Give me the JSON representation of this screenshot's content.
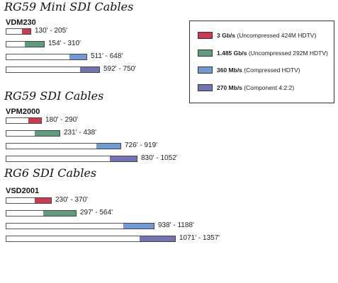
{
  "chart_data": {
    "type": "bar",
    "colors": {
      "3gbs": "#cd3a4f",
      "1485gbs": "#5f9c7f",
      "360mbs": "#6f9ad6",
      "270mbs": "#7474b4"
    },
    "legend": {
      "placement": "top-right",
      "entries": [
        {
          "key": "3gbs",
          "rate": "3 Gb/s",
          "desc": "(Uncompressed 424M HDTV)"
        },
        {
          "key": "1485gbs",
          "rate": "1.485 Gb/s",
          "desc": "(Uncompressed 292M HDTV)"
        },
        {
          "key": "360mbs",
          "rate": "360 Mb/s",
          "desc": "(Compressed HDTV)"
        },
        {
          "key": "270mbs",
          "rate": "270 Mb/s",
          "desc": "(Component 4:2:2)"
        }
      ]
    },
    "scale_max_ft": 1357,
    "sections": [
      {
        "title": "RG59 Mini SDI Cables",
        "cable": "VDM230",
        "bars": [
          {
            "series": "3gbs",
            "min": 130,
            "max": 205,
            "label": "130' - 205'"
          },
          {
            "series": "1485gbs",
            "min": 154,
            "max": 310,
            "label": "154' - 310'"
          },
          {
            "series": "360mbs",
            "min": 511,
            "max": 648,
            "label": "511' - 648'"
          },
          {
            "series": "270mbs",
            "min": 592,
            "max": 750,
            "label": "592' - 750'"
          }
        ]
      },
      {
        "title": "RG59 SDI Cables",
        "cable": "VPM2000",
        "bars": [
          {
            "series": "3gbs",
            "min": 180,
            "max": 290,
            "label": "180' - 290'"
          },
          {
            "series": "1485gbs",
            "min": 231,
            "max": 438,
            "label": "231' - 438'"
          },
          {
            "series": "360mbs",
            "min": 726,
            "max": 919,
            "label": "726' - 919'"
          },
          {
            "series": "270mbs",
            "min": 830,
            "max": 1052,
            "label": "830' - 1052'"
          }
        ]
      },
      {
        "title": "RG6 SDI Cables",
        "cable": "VSD2001",
        "bars": [
          {
            "series": "3gbs",
            "min": 230,
            "max": 370,
            "label": "230' - 370'"
          },
          {
            "series": "1485gbs",
            "min": 297,
            "max": 564,
            "label": "297' - 564'"
          },
          {
            "series": "360mbs",
            "min": 938,
            "max": 1188,
            "label": "938' - 1188'"
          },
          {
            "series": "270mbs",
            "min": 1071,
            "max": 1357,
            "label": "1071' - 1357'"
          }
        ]
      }
    ]
  }
}
